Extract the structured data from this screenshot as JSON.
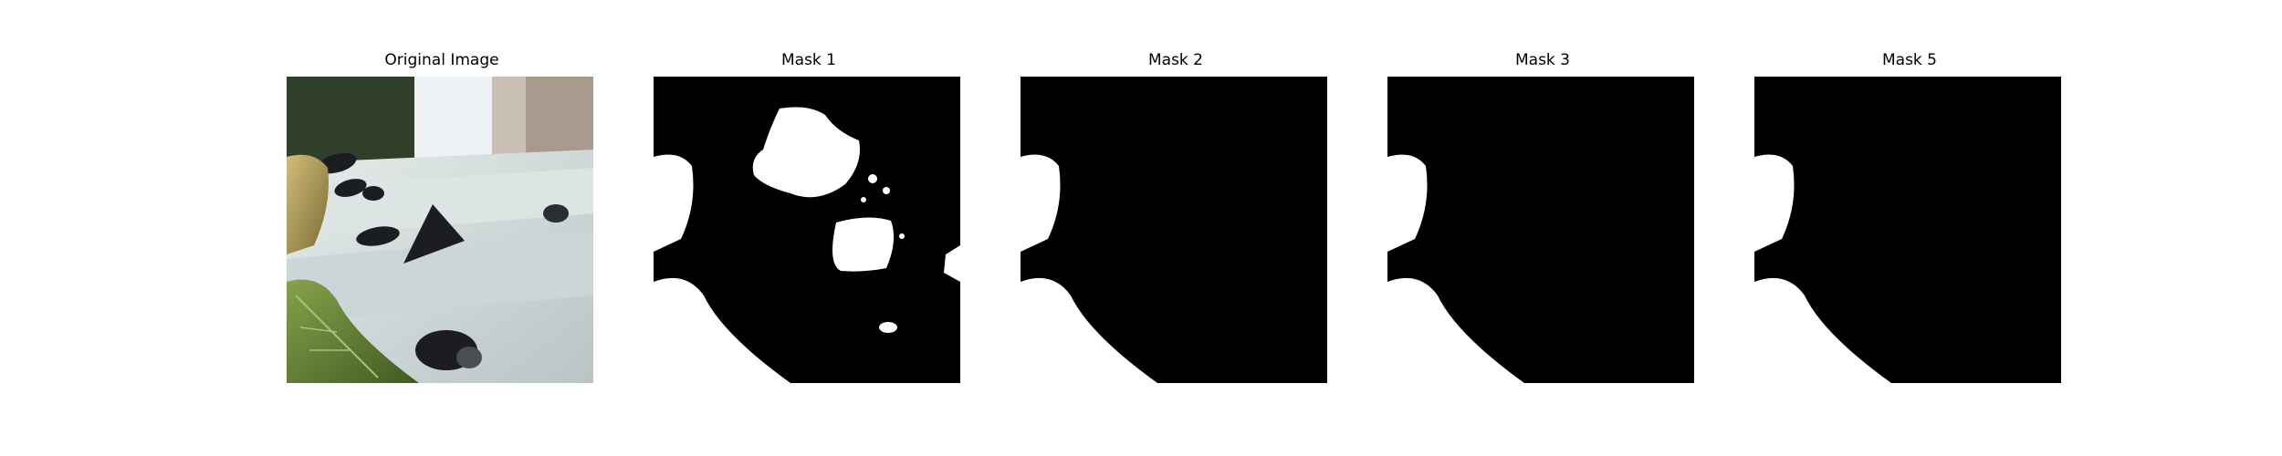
{
  "figure": {
    "panels": [
      {
        "title": "Original Image",
        "kind": "photo"
      },
      {
        "title": "Mask 1",
        "kind": "mask"
      },
      {
        "title": "Mask 2",
        "kind": "mask"
      },
      {
        "title": "Mask 3",
        "kind": "mask"
      },
      {
        "title": "Mask 5",
        "kind": "mask"
      }
    ]
  },
  "colors": {
    "mask_background": "#000000",
    "mask_foreground": "#ffffff",
    "photo_sky": "#dfe5e7",
    "photo_tray": "#c9d3d3",
    "photo_foliage": "#6b8a3a",
    "photo_dry_leaf": "#b29a52",
    "photo_holes": "#1b1d22"
  }
}
